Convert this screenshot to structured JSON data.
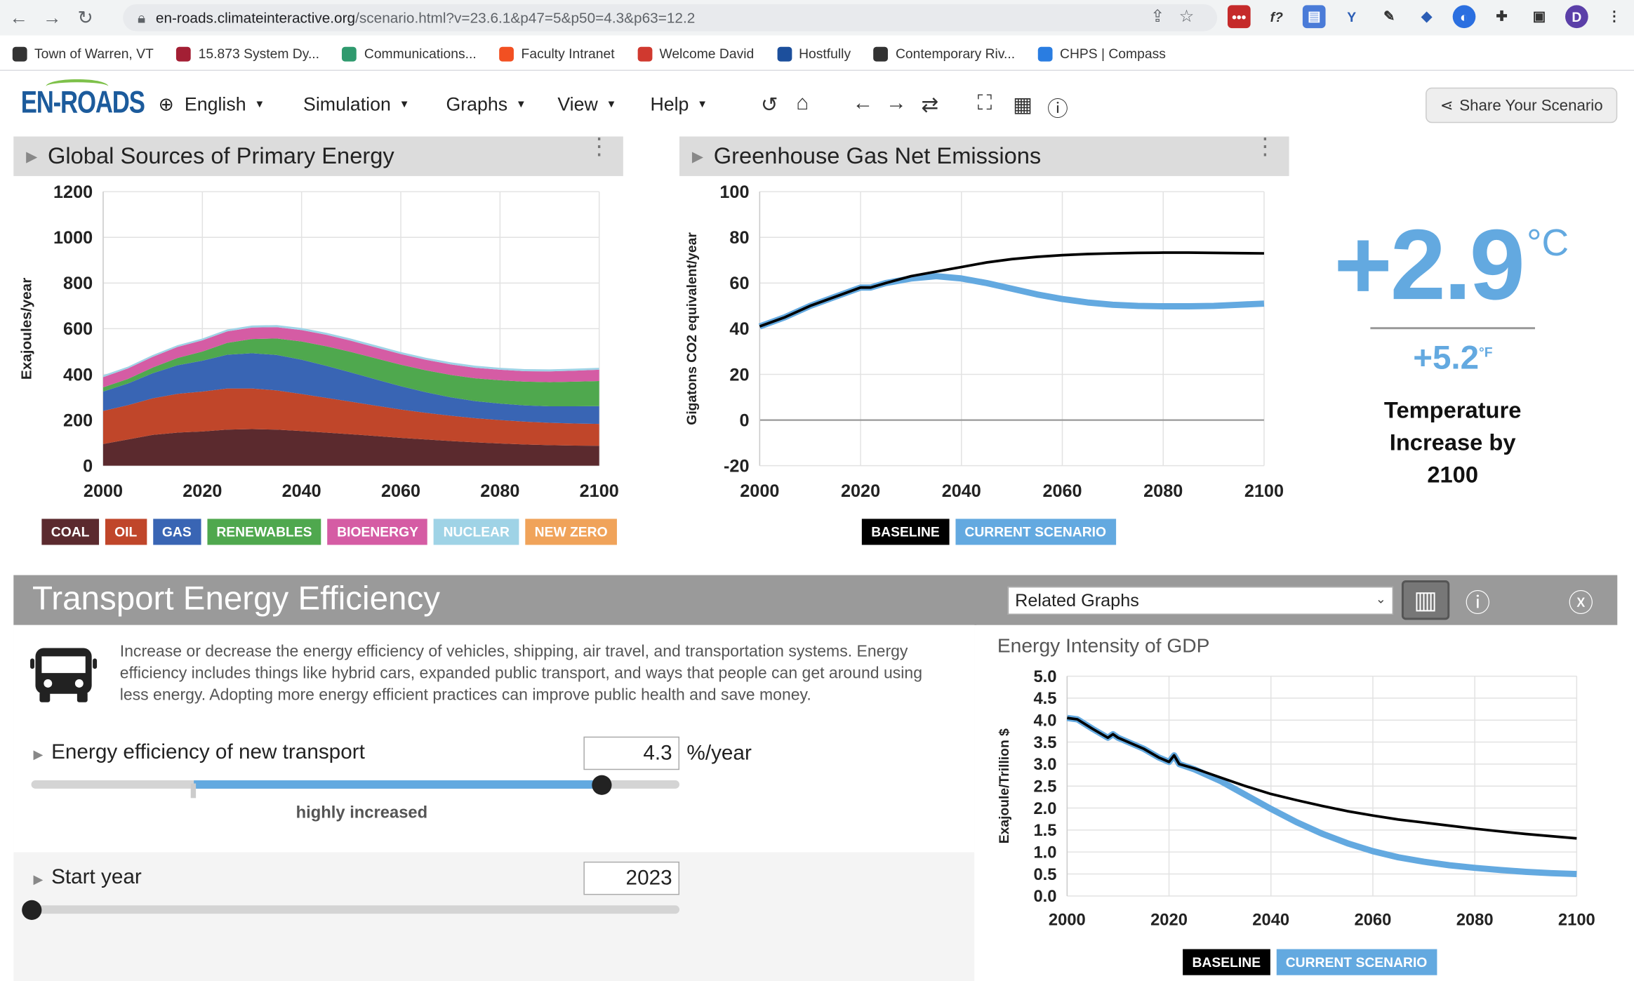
{
  "browser": {
    "url_host": "en-roads.climateinteractive.org",
    "url_path": "/scenario.html?v=23.6.1&p47=5&p50=4.3&p63=12.2",
    "profile_initial": "D",
    "bookmarks": [
      {
        "label": "Town of Warren, VT",
        "color": "#333333"
      },
      {
        "label": "15.873 System Dy...",
        "color": "#a31f34"
      },
      {
        "label": "Communications...",
        "color": "#2f9a6e"
      },
      {
        "label": "Faculty Intranet",
        "color": "#f25022"
      },
      {
        "label": "Welcome David",
        "color": "#d0392f"
      },
      {
        "label": "Hostfully",
        "color": "#1c4f9c"
      },
      {
        "label": "Contemporary Riv...",
        "color": "#333333"
      },
      {
        "label": "CHPS | Compass",
        "color": "#2a7de1"
      }
    ]
  },
  "app": {
    "logo": "EN-ROADS",
    "menus": [
      "English",
      "Simulation",
      "Graphs",
      "View",
      "Help"
    ],
    "share_label": "Share Your Scenario"
  },
  "graph1": {
    "title": "Global Sources of Primary Energy",
    "legend": [
      {
        "label": "COAL",
        "color": "#5b2a2e"
      },
      {
        "label": "OIL",
        "color": "#c0462a"
      },
      {
        "label": "GAS",
        "color": "#3965b4"
      },
      {
        "label": "RENEWABLES",
        "color": "#4fa84e"
      },
      {
        "label": "BIOENERGY",
        "color": "#d55ca4"
      },
      {
        "label": "NUCLEAR",
        "color": "#9fd3e6"
      },
      {
        "label": "NEW ZERO",
        "color": "#f0a35a"
      }
    ]
  },
  "graph2": {
    "title": "Greenhouse Gas Net Emissions",
    "legend": [
      {
        "label": "BASELINE",
        "color": "#000000"
      },
      {
        "label": "CURRENT SCENARIO",
        "color": "#63a9e0"
      }
    ]
  },
  "temperature": {
    "value_c": "+2.9",
    "unit_c": "°C",
    "value_f": "+5.2",
    "unit_f": "°F",
    "label_line1": "Temperature",
    "label_line2": "Increase by",
    "label_line3": "2100"
  },
  "section": {
    "title": "Transport Energy Efficiency",
    "related_graphs": "Related Graphs",
    "description": "Increase or decrease the energy efficiency of vehicles, shipping, air travel, and transportation systems. Energy efficiency includes things like hybrid cars, expanded public transport, and ways that people can get around using less energy. Adopting more energy efficient practices can improve public health and save money.",
    "slider1": {
      "label": "Energy efficiency of new transport",
      "value": "4.3",
      "unit": "%/year",
      "sub_label": "highly increased",
      "fraction": 0.88
    },
    "slider2": {
      "label": "Start year",
      "value": "2023",
      "fraction": 0.0
    }
  },
  "graph3": {
    "title": "Energy Intensity of GDP",
    "legend": [
      {
        "label": "BASELINE",
        "color": "#000000"
      },
      {
        "label": "CURRENT SCENARIO",
        "color": "#63a9e0"
      }
    ]
  },
  "chart_data": [
    {
      "type": "area",
      "title": "Global Sources of Primary Energy",
      "xlabel": "",
      "ylabel": "Exajoules/year",
      "xlim": [
        2000,
        2100
      ],
      "ylim": [
        0,
        1200
      ],
      "x_ticks": [
        2000,
        2020,
        2040,
        2060,
        2080,
        2100
      ],
      "y_ticks": [
        0,
        200,
        400,
        600,
        800,
        1000,
        1200
      ],
      "grid": true,
      "stacked": true,
      "x": [
        2000,
        2005,
        2010,
        2015,
        2020,
        2025,
        2030,
        2035,
        2040,
        2045,
        2050,
        2055,
        2060,
        2065,
        2070,
        2075,
        2080,
        2085,
        2090,
        2095,
        2100
      ],
      "series": [
        {
          "name": "COAL",
          "color": "#5b2a2e",
          "values": [
            95,
            115,
            135,
            145,
            150,
            158,
            160,
            158,
            152,
            145,
            138,
            130,
            122,
            115,
            108,
            102,
            97,
            93,
            90,
            88,
            87
          ]
        },
        {
          "name": "OIL",
          "color": "#c0462a",
          "values": [
            145,
            150,
            160,
            170,
            175,
            180,
            178,
            172,
            162,
            152,
            142,
            133,
            124,
            117,
            111,
            106,
            103,
            100,
            98,
            97,
            96
          ]
        },
        {
          "name": "GAS",
          "color": "#3965b4",
          "values": [
            85,
            95,
            110,
            125,
            135,
            148,
            155,
            155,
            150,
            140,
            128,
            115,
            102,
            90,
            81,
            75,
            72,
            71,
            72,
            75,
            78
          ]
        },
        {
          "name": "RENEWABLES",
          "color": "#4fa84e",
          "values": [
            18,
            20,
            25,
            32,
            40,
            52,
            62,
            72,
            80,
            86,
            90,
            92,
            94,
            96,
            98,
            100,
            102,
            104,
            106,
            108,
            110
          ]
        },
        {
          "name": "BIOENERGY",
          "color": "#d55ca4",
          "values": [
            45,
            46,
            47,
            48,
            49,
            50,
            50,
            50,
            50,
            50,
            49,
            48,
            47,
            46,
            46,
            46,
            46,
            46,
            47,
            48,
            49
          ]
        },
        {
          "name": "NUCLEAR",
          "color": "#9fd3e6",
          "values": [
            8,
            8,
            8,
            8,
            8,
            9,
            9,
            9,
            9,
            9,
            9,
            9,
            9,
            9,
            9,
            9,
            9,
            9,
            9,
            9,
            9
          ]
        },
        {
          "name": "NEW ZERO",
          "color": "#f0a35a",
          "values": [
            0,
            0,
            0,
            0,
            0,
            0,
            0,
            0,
            0,
            0,
            0,
            0,
            0,
            0,
            0,
            0,
            0,
            0,
            0,
            0,
            0
          ]
        }
      ]
    },
    {
      "type": "line",
      "title": "Greenhouse Gas Net Emissions",
      "xlabel": "",
      "ylabel": "Gigatons CO2 equivalent/year",
      "xlim": [
        2000,
        2100
      ],
      "ylim": [
        -20,
        100
      ],
      "x_ticks": [
        2000,
        2020,
        2040,
        2060,
        2080,
        2100
      ],
      "y_ticks": [
        -20,
        0,
        20,
        40,
        60,
        80,
        100
      ],
      "grid": true,
      "x": [
        2000,
        2005,
        2010,
        2015,
        2020,
        2022,
        2025,
        2030,
        2035,
        2040,
        2045,
        2050,
        2055,
        2060,
        2065,
        2070,
        2075,
        2080,
        2085,
        2090,
        2095,
        2100
      ],
      "series": [
        {
          "name": "BASELINE",
          "color": "#000000",
          "values": [
            41,
            45,
            50,
            54,
            58,
            58,
            60,
            63,
            65,
            67,
            69,
            70.5,
            71.5,
            72.2,
            72.7,
            73,
            73.2,
            73.3,
            73.3,
            73.2,
            73.1,
            73
          ]
        },
        {
          "name": "CURRENT SCENARIO",
          "color": "#63a9e0",
          "values": [
            41,
            45,
            50,
            54,
            58,
            58,
            60,
            62,
            63,
            62,
            60,
            57.5,
            55,
            53,
            51.5,
            50.5,
            50,
            49.8,
            49.8,
            50,
            50.5,
            51
          ]
        }
      ]
    },
    {
      "type": "line",
      "title": "Energy Intensity of GDP",
      "xlabel": "",
      "ylabel": "Exajoule/Trillion $",
      "xlim": [
        2000,
        2100
      ],
      "ylim": [
        0,
        5
      ],
      "x_ticks": [
        2000,
        2020,
        2040,
        2060,
        2080,
        2100
      ],
      "y_ticks": [
        0.0,
        0.5,
        1.0,
        1.5,
        2.0,
        2.5,
        3.0,
        3.5,
        4.0,
        4.5,
        5.0
      ],
      "grid": true,
      "x": [
        2000,
        2002,
        2005,
        2008,
        2009,
        2010,
        2012,
        2015,
        2018,
        2020,
        2021,
        2022,
        2025,
        2030,
        2035,
        2040,
        2045,
        2050,
        2055,
        2060,
        2065,
        2070,
        2075,
        2080,
        2085,
        2090,
        2095,
        2100
      ],
      "series": [
        {
          "name": "BASELINE",
          "color": "#000000",
          "values": [
            4.05,
            4.02,
            3.8,
            3.6,
            3.68,
            3.6,
            3.5,
            3.35,
            3.15,
            3.05,
            3.2,
            3.0,
            2.9,
            2.7,
            2.5,
            2.32,
            2.18,
            2.05,
            1.93,
            1.83,
            1.74,
            1.67,
            1.6,
            1.53,
            1.47,
            1.41,
            1.36,
            1.31
          ]
        },
        {
          "name": "CURRENT SCENARIO",
          "color": "#63a9e0",
          "values": [
            4.05,
            4.02,
            3.8,
            3.6,
            3.68,
            3.6,
            3.5,
            3.35,
            3.15,
            3.05,
            3.2,
            3.0,
            2.88,
            2.62,
            2.3,
            1.98,
            1.68,
            1.42,
            1.2,
            1.02,
            0.88,
            0.78,
            0.7,
            0.64,
            0.59,
            0.55,
            0.52,
            0.5
          ]
        }
      ]
    }
  ]
}
